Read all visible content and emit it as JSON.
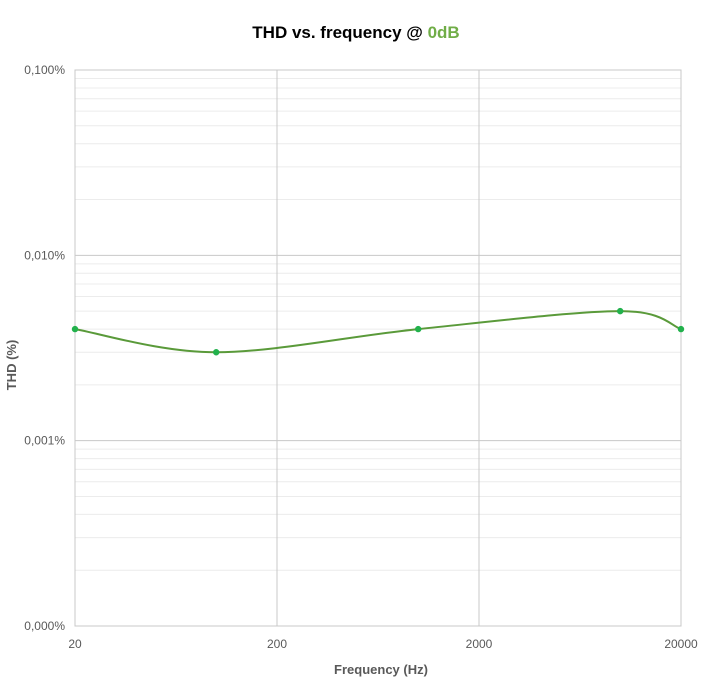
{
  "chart_data": {
    "type": "line",
    "title": "THD vs. frequency @ ",
    "title_highlight": "0dB",
    "xlabel": "Frequency (Hz)",
    "ylabel": "THD (%)",
    "x_scale": "log",
    "y_scale": "log",
    "xlim": [
      20,
      20000
    ],
    "ylim": [
      0.0001,
      0.1
    ],
    "x_ticks": [
      {
        "value": 20,
        "label": "20"
      },
      {
        "value": 200,
        "label": "200"
      },
      {
        "value": 2000,
        "label": "2000"
      },
      {
        "value": 20000,
        "label": "20000"
      }
    ],
    "y_ticks": [
      {
        "value": 0.0001,
        "label": "0,000%"
      },
      {
        "value": 0.001,
        "label": "0,001%"
      },
      {
        "value": 0.01,
        "label": "0,010%"
      },
      {
        "value": 0.1,
        "label": "0,100%"
      }
    ],
    "grid": {
      "major": true,
      "minor_y": true
    },
    "legend": "none",
    "series": [
      {
        "color": "#5a9a3a",
        "marker_color": "#22b14c",
        "points": [
          {
            "x": 20,
            "y": 0.004
          },
          {
            "x": 100,
            "y": 0.003
          },
          {
            "x": 1000,
            "y": 0.004
          },
          {
            "x": 10000,
            "y": 0.005
          },
          {
            "x": 20000,
            "y": 0.004
          }
        ]
      }
    ]
  },
  "colors": {
    "title_highlight": "#70ad47",
    "axis_text": "#595959",
    "major_grid": "#c8c8c8",
    "minor_grid": "#ececec",
    "plot_border": "#c8c8c8"
  }
}
